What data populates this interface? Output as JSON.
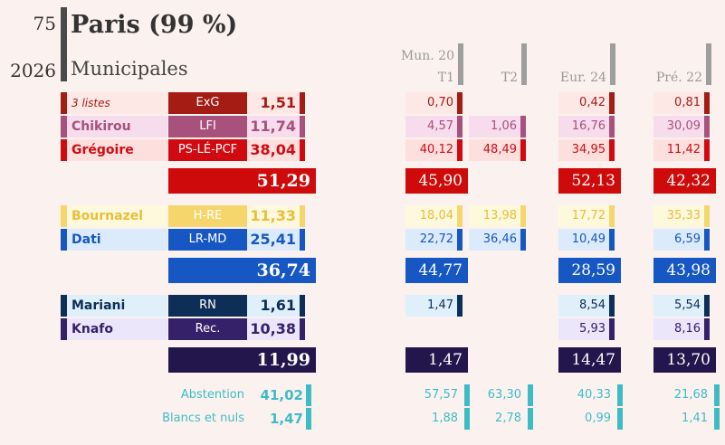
{
  "header": {
    "dept": "75",
    "year": "2026",
    "title": "Paris (99 %)",
    "subtitle": "Municipales"
  },
  "columns": {
    "mun_label": "Mun. 20",
    "t1": "T1",
    "t2": "T2",
    "eur": "Eur. 24",
    "pre": "Pré. 22"
  },
  "rows": [
    {
      "name": "3 listes",
      "party": "ExG",
      "value": "1,51",
      "t1": "0,70",
      "t2": "",
      "eur": "0,42",
      "pre": "0,81"
    },
    {
      "name": "Chikirou",
      "party": "LFI",
      "value": "11,74",
      "t1": "4,57",
      "t2": "1,06",
      "eur": "16,76",
      "pre": "30,09"
    },
    {
      "name": "Grégoire",
      "party": "PS-LÉ-PCF",
      "value": "38,04",
      "t1": "40,12",
      "t2": "48,49",
      "eur": "34,95",
      "pre": "11,42"
    },
    {
      "name": "Bournazel",
      "party": "H-RE",
      "value": "11,33",
      "t1": "18,04",
      "t2": "13,98",
      "eur": "17,72",
      "pre": "35,33"
    },
    {
      "name": "Dati",
      "party": "LR-MD",
      "value": "25,41",
      "t1": "22,72",
      "t2": "36,46",
      "eur": "10,49",
      "pre": "6,59"
    },
    {
      "name": "Mariani",
      "party": "RN",
      "value": "1,61",
      "t1": "1,47",
      "t2": "",
      "eur": "8,54",
      "pre": "5,54"
    },
    {
      "name": "Knafo",
      "party": "Rec.",
      "value": "10,38",
      "t1": "",
      "t2": "",
      "eur": "5,93",
      "pre": "8,16"
    }
  ],
  "totals": [
    {
      "value": "51,29",
      "t1": "45,90",
      "eur": "52,13",
      "pre": "42,32"
    },
    {
      "value": "36,74",
      "t1": "44,77",
      "eur": "28,59",
      "pre": "43,98"
    },
    {
      "value": "11,99",
      "t1": "1,47",
      "eur": "14,47",
      "pre": "13,70"
    }
  ],
  "bottom": [
    {
      "label": "Abstention",
      "value": "41,02",
      "t1": "57,57",
      "t2": "63,30",
      "eur": "40,33",
      "pre": "21,68"
    },
    {
      "label": "Blancs et nuls",
      "value": "1,47",
      "t1": "1,88",
      "t2": "2,78",
      "eur": "0,99",
      "pre": "1,41"
    }
  ],
  "colors": {
    "exg": "#a51c14",
    "lfi": "#a7517c",
    "ps": "#d10a12",
    "hre": "#f5d66c",
    "lrmd": "#1657c4",
    "rn": "#0c2e57",
    "rec": "#35206a",
    "total_left": "#cf0a0a",
    "total_center": "#1657c4",
    "total_right": "#23164c",
    "turnout": "#3ebcc6"
  }
}
